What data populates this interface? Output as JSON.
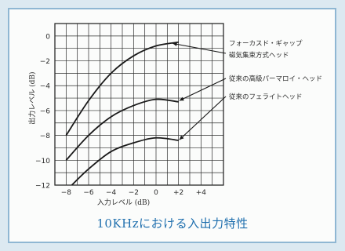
{
  "caption": "10KHzにおける入出力特性",
  "chart_data": {
    "type": "line",
    "title": "",
    "xlabel": "入力レベル (dB)",
    "ylabel": "出力レベル (dB)",
    "xlim": [
      -9,
      6
    ],
    "ylim": [
      -12,
      1
    ],
    "x_ticks": [
      -8,
      -6,
      -4,
      -2,
      0,
      2,
      4
    ],
    "x_tick_labels": [
      "−8",
      "−6",
      "−4",
      "−2",
      "0",
      "+2",
      "+4"
    ],
    "y_ticks": [
      0,
      -2,
      -4,
      -6,
      -8,
      -10,
      -12
    ],
    "y_tick_labels": [
      "0",
      "−2",
      "−4",
      "−6",
      "−8",
      "−10",
      "−12"
    ],
    "grid": true,
    "series": [
      {
        "name": "フォーカスド・ギャップ 磁気集束方式ヘッド",
        "label_lines": [
          "フォーカスド・ギャップ",
          "磁気集束方式ヘッド"
        ],
        "x": [
          -8,
          -6,
          -4,
          -2,
          0,
          2
        ],
        "y": [
          -8,
          -5.2,
          -3,
          -1.6,
          -0.8,
          -0.5
        ]
      },
      {
        "name": "従来の高級パーマロイ・ヘッド",
        "label_lines": [
          "従来の高級パーマロイ・ヘッド"
        ],
        "x": [
          -8,
          -6,
          -4,
          -2,
          0,
          2
        ],
        "y": [
          -10,
          -8,
          -6.5,
          -5.6,
          -5.1,
          -5.3
        ]
      },
      {
        "name": "従来のフェライトヘッド",
        "label_lines": [
          "従来のフェライトヘッド"
        ],
        "x": [
          -7.5,
          -6,
          -4,
          -2,
          0,
          2
        ],
        "y": [
          -12,
          -10.7,
          -9.3,
          -8.6,
          -8.2,
          -8.4
        ]
      }
    ]
  }
}
